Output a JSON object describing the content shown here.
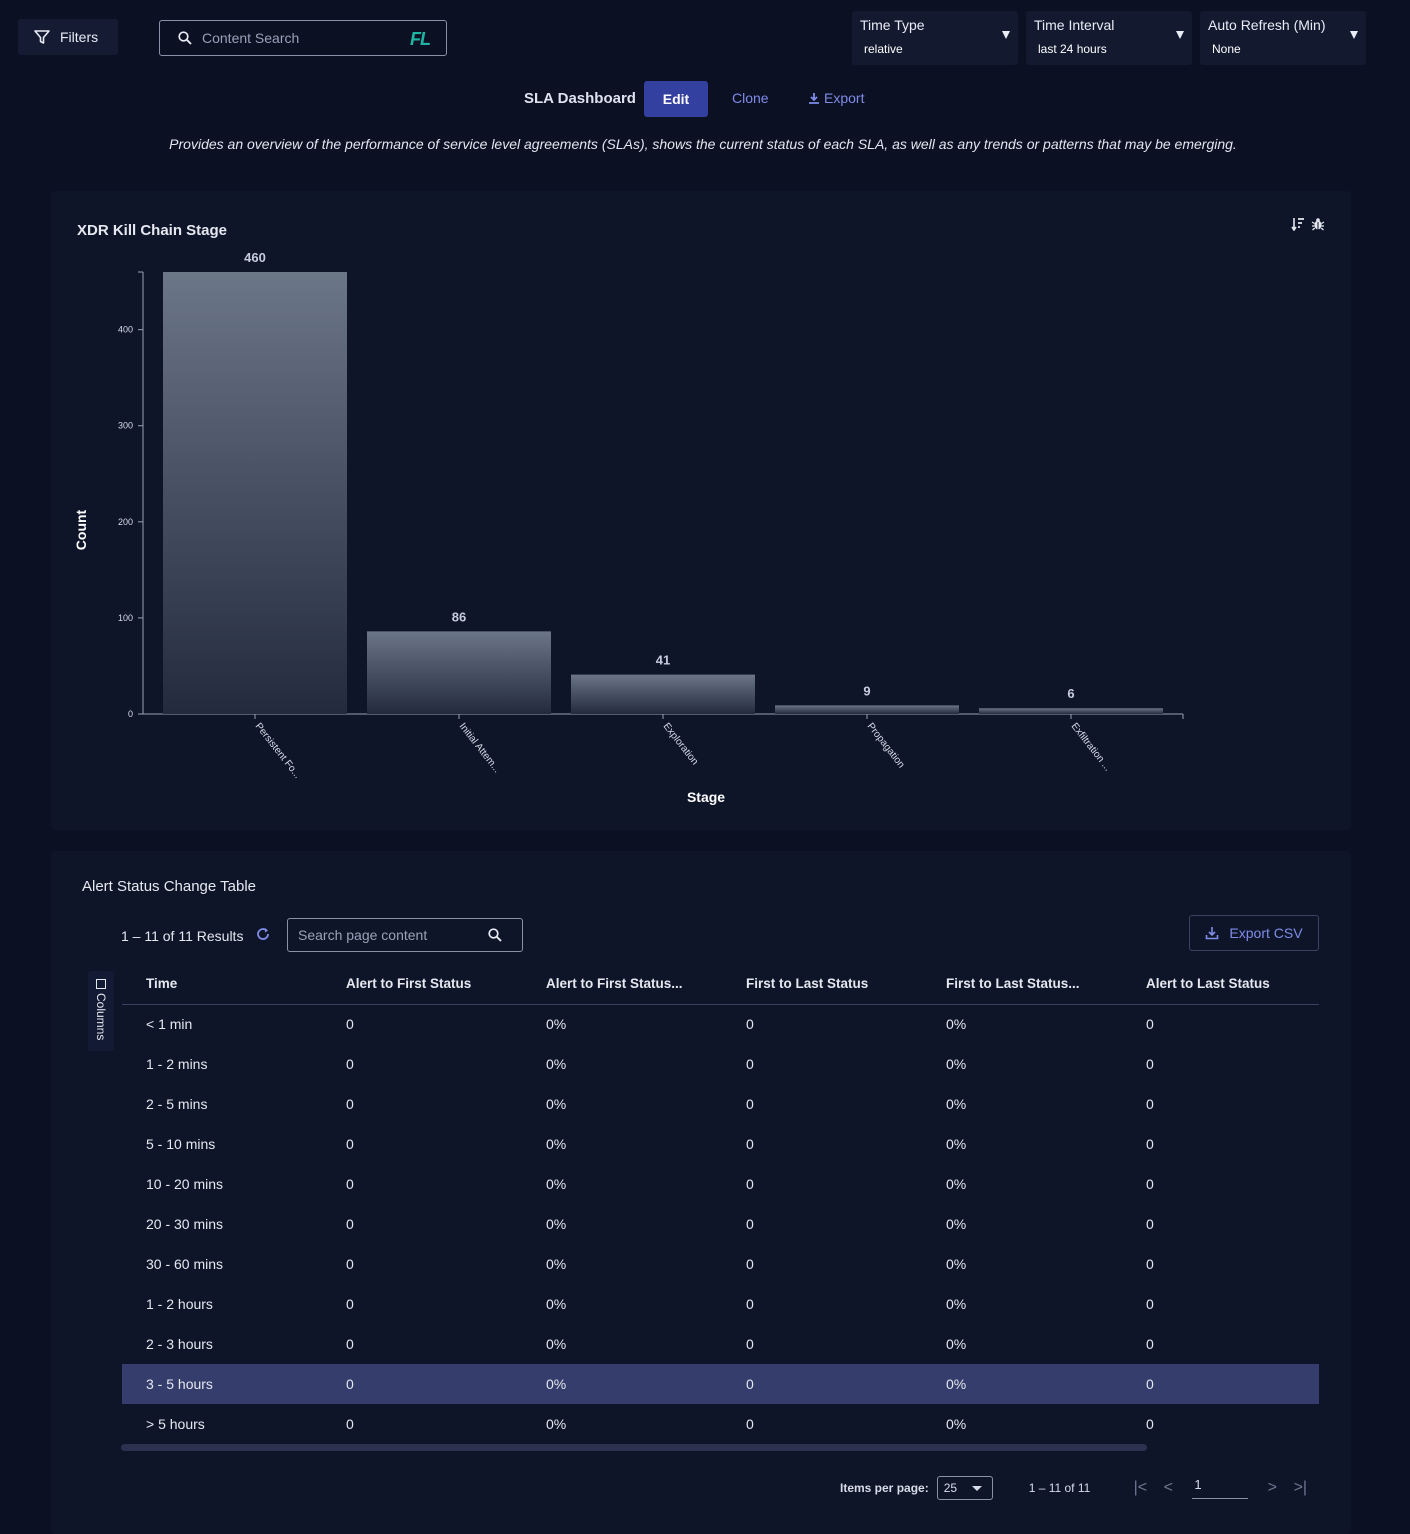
{
  "topbar": {
    "filters_label": "Filters",
    "search_placeholder": "Content Search",
    "search_logo": "FL",
    "dropdowns": [
      {
        "label": "Time Type",
        "value": "relative"
      },
      {
        "label": "Time Interval",
        "value": "last 24 hours"
      },
      {
        "label": "Auto Refresh (Min)",
        "value": "None"
      }
    ]
  },
  "dashboard": {
    "title": "SLA Dashboard",
    "edit_label": "Edit",
    "clone_label": "Clone",
    "export_label": "Export",
    "description": "Provides an overview of the performance of service level agreements (SLAs), shows the current status of each SLA, as well as any trends or patterns that may be emerging."
  },
  "chart_panel": {
    "title": "XDR Kill Chain Stage",
    "tools": [
      "sort-icon",
      "bug-icon"
    ]
  },
  "chart_data": {
    "type": "bar",
    "categories": [
      "Persistent Fo...",
      "Initial Attem...",
      "Exploration",
      "Propagation",
      "Exfiltration ..."
    ],
    "values": [
      460,
      86,
      41,
      9,
      6
    ],
    "xlabel": "Stage",
    "ylabel": "Count",
    "yticks": [
      0,
      100,
      200,
      300,
      400
    ],
    "ylim": [
      0,
      460
    ],
    "bar_color_top": "#6b7687",
    "bar_color_bottom": "#232a3e",
    "grid": false
  },
  "table_panel": {
    "title": "Alert Status Change Table",
    "results_text": "1 – 11 of 11 Results",
    "search_placeholder": "Search page content",
    "export_csv_label": "Export CSV",
    "columns_tab_label": "Columns",
    "headers": [
      "Time",
      "Alert to First Status",
      "Alert to First Status...",
      "First to Last Status",
      "First to Last Status...",
      "Alert to Last Status"
    ],
    "rows": [
      [
        "< 1 min",
        "0",
        "0%",
        "0",
        "0%",
        "0"
      ],
      [
        "1 - 2 mins",
        "0",
        "0%",
        "0",
        "0%",
        "0"
      ],
      [
        "2 - 5 mins",
        "0",
        "0%",
        "0",
        "0%",
        "0"
      ],
      [
        "5 - 10 mins",
        "0",
        "0%",
        "0",
        "0%",
        "0"
      ],
      [
        "10 - 20 mins",
        "0",
        "0%",
        "0",
        "0%",
        "0"
      ],
      [
        "20 - 30 mins",
        "0",
        "0%",
        "0",
        "0%",
        "0"
      ],
      [
        "30 - 60 mins",
        "0",
        "0%",
        "0",
        "0%",
        "0"
      ],
      [
        "1 - 2 hours",
        "0",
        "0%",
        "0",
        "0%",
        "0"
      ],
      [
        "2 - 3 hours",
        "0",
        "0%",
        "0",
        "0%",
        "0"
      ],
      [
        "3 - 5 hours",
        "0",
        "0%",
        "0",
        "0%",
        "0"
      ],
      [
        "> 5 hours",
        "0",
        "0%",
        "0",
        "0%",
        "0"
      ]
    ],
    "selected_row": 9,
    "paginator": {
      "items_per_page_label": "Items per page:",
      "page_size": "25",
      "range_label": "1 – 11 of 11",
      "page_input": "1"
    }
  },
  "colors": {
    "background": "#0b1023",
    "panel": "#0f1529",
    "accent": "#3340a0",
    "link": "#7f8ce8",
    "selected_row": "#343d6b"
  }
}
